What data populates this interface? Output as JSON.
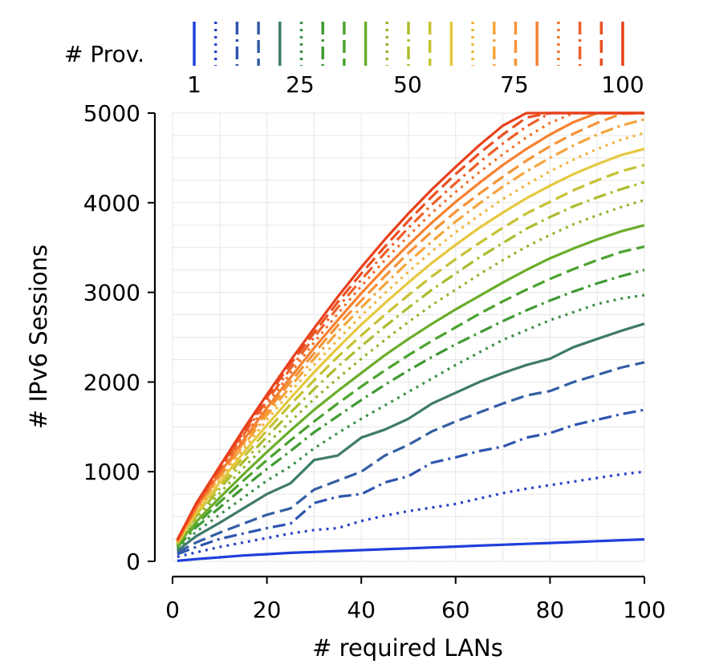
{
  "chart_data": {
    "type": "line",
    "xlabel": "# required LANs",
    "ylabel": "# IPv6 Sessions",
    "xlim": [
      0,
      100
    ],
    "ylim": [
      0,
      5000
    ],
    "xticks": [
      0,
      20,
      40,
      60,
      80,
      100
    ],
    "yticks": [
      0,
      1000,
      2000,
      3000,
      4000,
      5000
    ],
    "grid": true,
    "legend": {
      "title": "# Prov.",
      "placement": "top",
      "tick_labels": [
        "1",
        "25",
        "50",
        "75",
        "100"
      ]
    },
    "x": [
      1,
      5,
      10,
      15,
      20,
      25,
      30,
      35,
      40,
      45,
      50,
      55,
      60,
      65,
      70,
      75,
      80,
      85,
      90,
      95,
      100
    ],
    "series": [
      {
        "color": "#1f3fdb",
        "dash": "solid",
        "values": [
          5,
          25,
          45,
          65,
          80,
          95,
          105,
          115,
          125,
          135,
          145,
          155,
          165,
          175,
          185,
          195,
          205,
          215,
          225,
          235,
          245
        ]
      },
      {
        "color": "#2a44c8",
        "dash": "dotted",
        "values": [
          50,
          100,
          160,
          210,
          260,
          310,
          350,
          370,
          450,
          510,
          560,
          600,
          640,
          700,
          760,
          810,
          850,
          890,
          930,
          970,
          1000
        ]
      },
      {
        "color": "#2e55b0",
        "dash": "dashdot",
        "values": [
          80,
          160,
          250,
          310,
          370,
          420,
          650,
          720,
          750,
          880,
          950,
          1100,
          1160,
          1230,
          1280,
          1380,
          1430,
          1520,
          1580,
          1640,
          1690
        ]
      },
      {
        "color": "#335ea3",
        "dash": "dashed",
        "values": [
          100,
          210,
          320,
          420,
          520,
          590,
          800,
          900,
          1000,
          1180,
          1300,
          1450,
          1560,
          1660,
          1760,
          1850,
          1900,
          2000,
          2080,
          2160,
          2220
        ]
      },
      {
        "color": "#3e7a6a",
        "dash": "solid",
        "values": [
          120,
          280,
          430,
          590,
          750,
          870,
          1130,
          1180,
          1380,
          1470,
          1590,
          1760,
          1880,
          2000,
          2100,
          2190,
          2260,
          2390,
          2480,
          2570,
          2650
        ]
      },
      {
        "color": "#3d8f48",
        "dash": "dotted",
        "values": [
          140,
          330,
          520,
          710,
          900,
          1060,
          1260,
          1430,
          1590,
          1740,
          1890,
          2040,
          2190,
          2330,
          2470,
          2580,
          2690,
          2780,
          2870,
          2930,
          2970
        ]
      },
      {
        "color": "#3f9a33",
        "dash": "dashdot",
        "values": [
          160,
          380,
          600,
          820,
          1030,
          1230,
          1440,
          1620,
          1800,
          1970,
          2130,
          2280,
          2420,
          2550,
          2680,
          2800,
          2910,
          3010,
          3100,
          3180,
          3250
        ]
      },
      {
        "color": "#4aa32e",
        "dash": "dashed",
        "values": [
          170,
          410,
          660,
          900,
          1130,
          1350,
          1560,
          1760,
          1950,
          2130,
          2300,
          2460,
          2610,
          2760,
          2900,
          3030,
          3150,
          3260,
          3360,
          3450,
          3510
        ]
      },
      {
        "color": "#6aad2a",
        "dash": "solid",
        "values": [
          180,
          440,
          710,
          970,
          1220,
          1460,
          1690,
          1900,
          2100,
          2300,
          2480,
          2650,
          2810,
          2960,
          3110,
          3250,
          3380,
          3490,
          3590,
          3680,
          3750
        ]
      },
      {
        "color": "#8fb62a",
        "dash": "dotted",
        "values": [
          190,
          470,
          760,
          1040,
          1310,
          1560,
          1810,
          2040,
          2260,
          2470,
          2670,
          2860,
          3030,
          3200,
          3360,
          3510,
          3640,
          3760,
          3860,
          3950,
          4030
        ]
      },
      {
        "color": "#adbb2e",
        "dash": "dashdot",
        "values": [
          200,
          500,
          810,
          1110,
          1390,
          1660,
          1920,
          2170,
          2400,
          2620,
          2830,
          3030,
          3210,
          3390,
          3550,
          3710,
          3840,
          3960,
          4060,
          4150,
          4230
        ]
      },
      {
        "color": "#c5c234",
        "dash": "dashed",
        "values": [
          205,
          520,
          850,
          1160,
          1460,
          1750,
          2020,
          2280,
          2520,
          2750,
          2970,
          3180,
          3370,
          3550,
          3720,
          3880,
          4010,
          4140,
          4250,
          4350,
          4420
        ]
      },
      {
        "color": "#e6c840",
        "dash": "solid",
        "values": [
          210,
          540,
          880,
          1210,
          1520,
          1820,
          2110,
          2380,
          2640,
          2880,
          3110,
          3330,
          3530,
          3720,
          3890,
          4050,
          4190,
          4320,
          4430,
          4530,
          4600
        ]
      },
      {
        "color": "#f0b73c",
        "dash": "dotted",
        "values": [
          215,
          560,
          910,
          1250,
          1580,
          1890,
          2190,
          2470,
          2740,
          2990,
          3230,
          3460,
          3670,
          3860,
          4040,
          4200,
          4350,
          4480,
          4600,
          4700,
          4780
        ]
      },
      {
        "color": "#f5a53a",
        "dash": "dashdot",
        "values": [
          220,
          580,
          940,
          1290,
          1630,
          1950,
          2260,
          2560,
          2830,
          3090,
          3340,
          3570,
          3790,
          3990,
          4180,
          4350,
          4500,
          4640,
          4760,
          4860,
          4930
        ]
      },
      {
        "color": "#f59337",
        "dash": "dashed",
        "values": [
          225,
          590,
          960,
          1320,
          1670,
          2000,
          2320,
          2630,
          2910,
          3180,
          3440,
          3680,
          3900,
          4100,
          4290,
          4470,
          4630,
          4770,
          4890,
          4990,
          5000
        ]
      },
      {
        "color": "#f68130",
        "dash": "solid",
        "values": [
          228,
          600,
          980,
          1350,
          1710,
          2050,
          2380,
          2690,
          2990,
          3270,
          3530,
          3780,
          4010,
          4220,
          4420,
          4600,
          4760,
          4900,
          5000,
          5000,
          5000
        ]
      },
      {
        "color": "#f2702c",
        "dash": "dotted",
        "values": [
          232,
          612,
          1000,
          1380,
          1750,
          2100,
          2440,
          2760,
          3070,
          3360,
          3630,
          3890,
          4120,
          4340,
          4540,
          4730,
          4890,
          5000,
          5000,
          5000,
          5000
        ]
      },
      {
        "color": "#ee5f28",
        "dash": "dashdot",
        "values": [
          235,
          625,
          1020,
          1410,
          1790,
          2150,
          2500,
          2830,
          3140,
          3440,
          3720,
          3980,
          4220,
          4450,
          4660,
          4850,
          5000,
          5000,
          5000,
          5000,
          5000
        ]
      },
      {
        "color": "#ea4f22",
        "dash": "dashed",
        "values": [
          238,
          635,
          1040,
          1440,
          1830,
          2200,
          2550,
          2890,
          3210,
          3510,
          3800,
          4070,
          4320,
          4550,
          4760,
          4950,
          5000,
          5000,
          5000,
          5000,
          5000
        ]
      },
      {
        "color": "#e8401b",
        "dash": "solid",
        "values": [
          240,
          645,
          1060,
          1470,
          1860,
          2240,
          2600,
          2950,
          3280,
          3590,
          3880,
          4150,
          4400,
          4640,
          4860,
          5000,
          5000,
          5000,
          5000,
          5000,
          5000
        ]
      }
    ]
  }
}
